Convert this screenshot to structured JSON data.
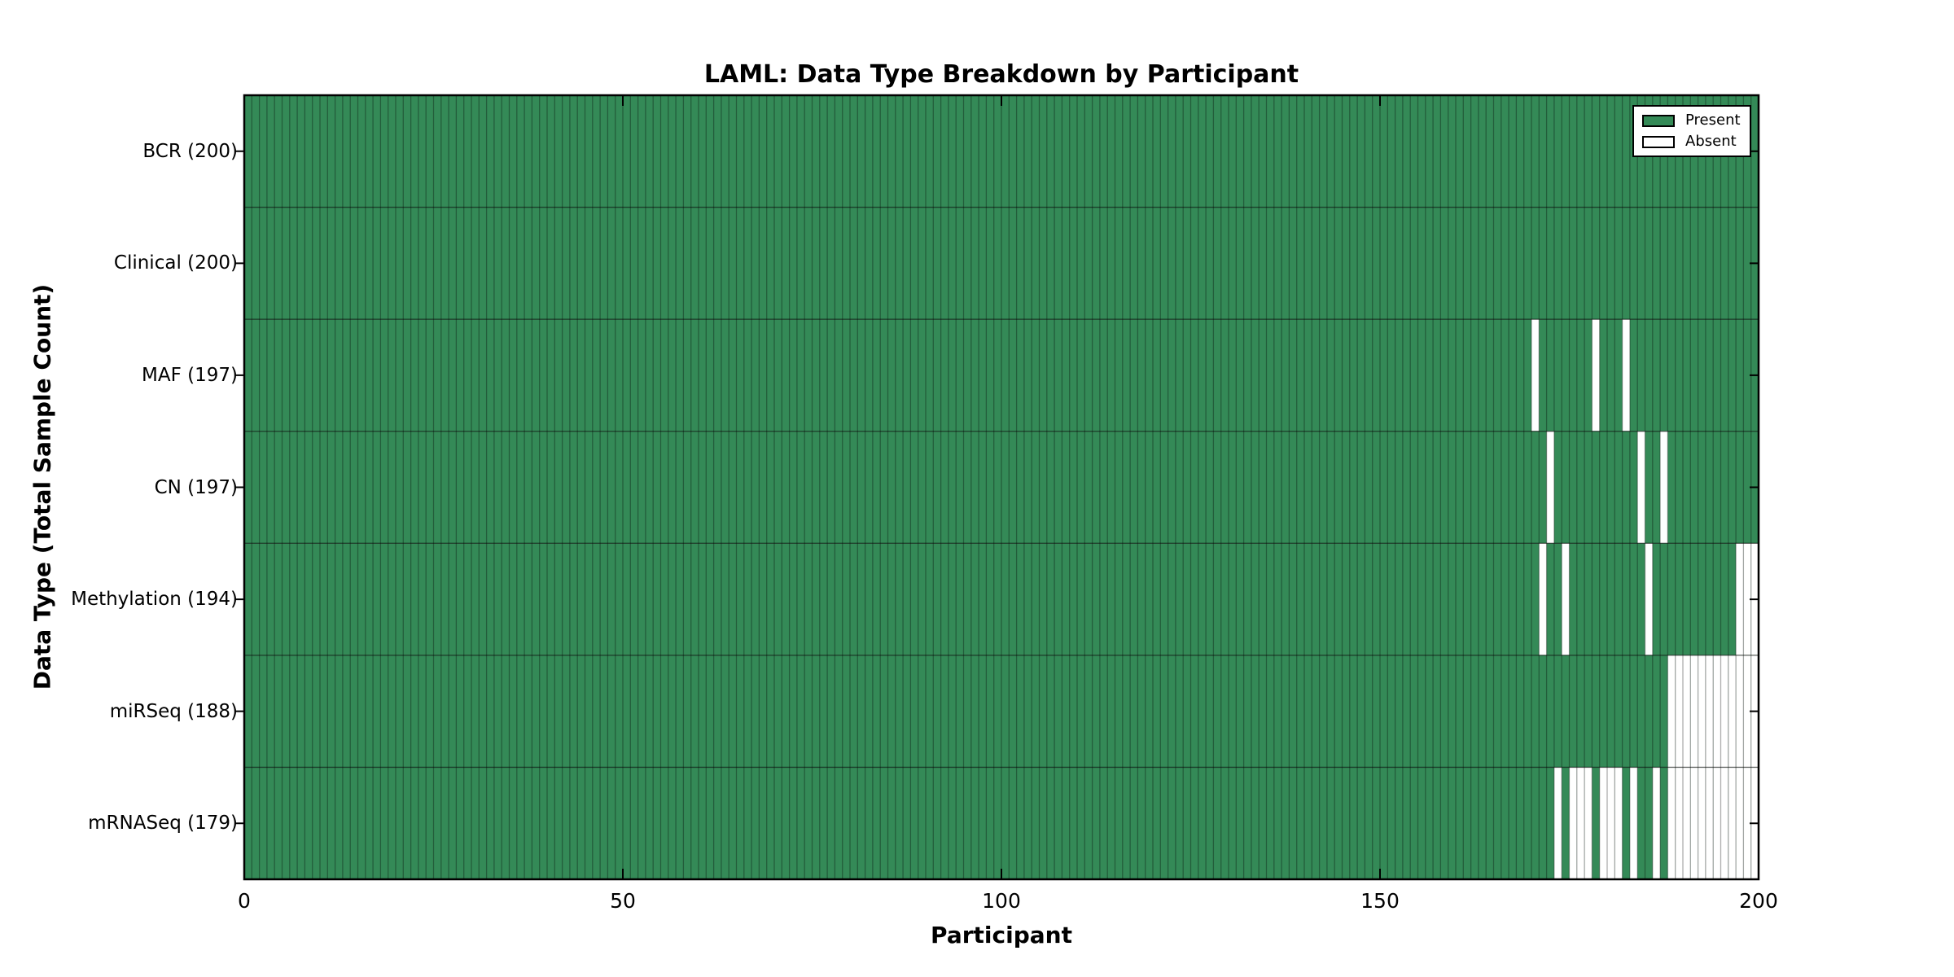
{
  "chart_data": {
    "type": "heatmap",
    "title": "LAML: Data Type Breakdown by Participant",
    "xlabel": "Participant",
    "ylabel": "Data Type (Total Sample Count)",
    "xlim": [
      0,
      200
    ],
    "x_ticks": [
      0,
      50,
      100,
      150,
      200
    ],
    "n_participants": 200,
    "grid": false,
    "legend_position": "upper right",
    "legend": [
      {
        "label": "Present",
        "color": "#348a57"
      },
      {
        "label": "Absent",
        "color": "#ffffff"
      }
    ],
    "colors": {
      "present": "#348a57",
      "absent": "#ffffff",
      "cell_border": "rgba(0,0,0,0.32)",
      "row_separator": "rgba(0,0,0,0.55)",
      "axis": "#000000"
    },
    "rows": [
      {
        "data_type": "BCR",
        "label": "BCR (200)",
        "total_samples": 200,
        "absent_participants": []
      },
      {
        "data_type": "Clinical",
        "label": "Clinical (200)",
        "total_samples": 200,
        "absent_participants": []
      },
      {
        "data_type": "MAF",
        "label": "MAF (197)",
        "total_samples": 197,
        "absent_participants": [
          170,
          178,
          182
        ]
      },
      {
        "data_type": "CN",
        "label": "CN (197)",
        "total_samples": 197,
        "absent_participants": [
          172,
          184,
          187
        ]
      },
      {
        "data_type": "Methylation",
        "label": "Methylation (194)",
        "total_samples": 194,
        "absent_participants": [
          171,
          174,
          185,
          197,
          198,
          199
        ]
      },
      {
        "data_type": "miRSeq",
        "label": "miRSeq (188)",
        "total_samples": 188,
        "absent_participants": [
          188,
          189,
          190,
          191,
          192,
          193,
          194,
          195,
          196,
          197,
          198,
          199
        ]
      },
      {
        "data_type": "mRNASeq",
        "label": "mRNASeq (179)",
        "total_samples": 179,
        "absent_participants": [
          173,
          175,
          176,
          177,
          179,
          180,
          181,
          183,
          186,
          188,
          189,
          190,
          191,
          192,
          193,
          194,
          195,
          196,
          197,
          198,
          199
        ]
      }
    ]
  }
}
